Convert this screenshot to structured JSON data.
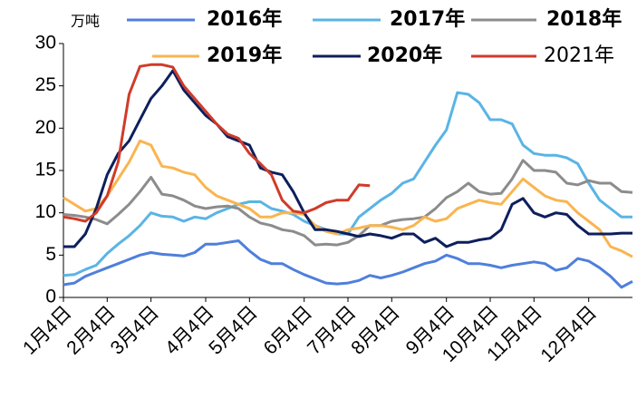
{
  "chart_data": {
    "type": "line",
    "unit": "万吨",
    "categories": [
      "1月4日",
      null,
      null,
      null,
      "2月4日",
      null,
      null,
      null,
      "3月4日",
      null,
      null,
      null,
      null,
      "4月4日",
      null,
      null,
      null,
      "5月4日",
      null,
      null,
      null,
      null,
      "6月4日",
      null,
      null,
      null,
      "7月4日",
      null,
      null,
      null,
      "8月4日",
      null,
      null,
      null,
      null,
      "9月4日",
      null,
      null,
      null,
      "10月4日",
      null,
      null,
      null,
      "11月4日",
      null,
      null,
      null,
      null,
      "12月4日",
      null,
      null,
      null,
      null
    ],
    "ylim": [
      0,
      30
    ],
    "yticks": [
      0,
      5,
      10,
      15,
      20,
      25,
      30
    ],
    "grid": false,
    "series": [
      {
        "name": "2016年",
        "color": "#4f7fdb",
        "values": [
          1.5,
          1.7,
          2.5,
          3,
          3.5,
          4,
          4.5,
          5,
          5.3,
          5.1,
          5,
          4.9,
          5.3,
          6.3,
          6.3,
          6.5,
          6.7,
          5.5,
          4.5,
          4,
          4,
          3.3,
          2.7,
          2.2,
          1.7,
          1.6,
          1.7,
          2,
          2.6,
          2.3,
          2.6,
          3,
          3.5,
          4,
          4.3,
          5,
          4.6,
          4,
          4,
          3.8,
          3.5,
          3.8,
          4,
          4.2,
          4,
          3.2,
          3.5,
          4.6,
          4.3,
          3.5,
          2.5,
          1.2,
          1.9
        ]
      },
      {
        "name": "2017年",
        "color": "#5ab4e5",
        "values": [
          2.6,
          2.7,
          3.3,
          3.8,
          5.2,
          6.3,
          7.3,
          8.5,
          10,
          9.6,
          9.5,
          9,
          9.5,
          9.3,
          10,
          10.5,
          11,
          11.3,
          11.3,
          10.5,
          10.2,
          9.8,
          9,
          8.5,
          8,
          7.5,
          7.5,
          9.5,
          10.5,
          11.5,
          12.3,
          13.5,
          14,
          16,
          18,
          19.8,
          24.2,
          24,
          23,
          21,
          21,
          20.5,
          18,
          17,
          16.8,
          16.8,
          16.5,
          15.8,
          13.5,
          11.5,
          10.5,
          9.5,
          9.5
        ]
      },
      {
        "name": "2018年",
        "color": "#8c8c8c",
        "values": [
          9.8,
          9.7,
          9.5,
          9.2,
          8.7,
          9.8,
          11,
          12.5,
          14.2,
          12.2,
          12,
          11.5,
          10.8,
          10.5,
          10.7,
          10.8,
          10.5,
          9.5,
          8.8,
          8.5,
          8,
          7.8,
          7.3,
          6.2,
          6.3,
          6.2,
          6.5,
          7.3,
          8.5,
          8.5,
          9,
          9.2,
          9.3,
          9.5,
          10.5,
          11.8,
          12.5,
          13.5,
          12.5,
          12.2,
          12.3,
          14,
          16.2,
          15,
          15,
          14.8,
          13.5,
          13.3,
          13.8,
          13.5,
          13.5,
          12.5,
          12.4
        ]
      },
      {
        "name": "2019年",
        "color": "#f9b550",
        "values": [
          11.8,
          11,
          10.2,
          10.5,
          12,
          14,
          16,
          18.5,
          18,
          15.5,
          15.3,
          14.8,
          14.5,
          13,
          12,
          11.5,
          11,
          10.5,
          9.5,
          9.5,
          10,
          10,
          9.8,
          8.5,
          7.8,
          7.5,
          8,
          8.2,
          8.5,
          8.5,
          8.3,
          8,
          8.5,
          9.5,
          9,
          9.3,
          10.5,
          11,
          11.5,
          11.2,
          11,
          12.5,
          14,
          13,
          12,
          11.5,
          11.3,
          10,
          9,
          8,
          6,
          5.5,
          4.8
        ]
      },
      {
        "name": "2020年",
        "color": "#0d1f5c",
        "values": [
          6,
          6,
          7.5,
          10.5,
          14.5,
          17,
          18.5,
          21,
          23.5,
          25,
          26.8,
          24.5,
          23,
          21.5,
          20.5,
          19,
          18.5,
          18,
          15.3,
          14.8,
          14.5,
          12.5,
          10,
          8,
          8,
          7.8,
          7.5,
          7.2,
          7.5,
          7.3,
          7,
          7.5,
          7.5,
          6.5,
          7,
          6,
          6.5,
          6.5,
          6.8,
          7,
          8,
          11,
          11.7,
          10,
          9.5,
          10,
          9.8,
          8.5,
          7.5,
          7.5,
          7.5,
          7.6,
          7.6
        ]
      },
      {
        "name": "2021年",
        "color": "#d03b2a",
        "values": [
          9.5,
          9.3,
          9,
          10,
          12,
          16,
          24,
          27.3,
          27.5,
          27.5,
          27.2,
          25,
          23.5,
          22,
          20.5,
          19.3,
          18.8,
          17,
          15.8,
          14.5,
          11.5,
          10.2,
          10,
          10.5,
          11.2,
          11.5,
          11.5,
          13.3,
          13.2,
          null,
          null,
          null,
          null,
          null,
          null,
          null,
          null,
          null,
          null,
          null,
          null,
          null,
          null,
          null,
          null,
          null,
          null,
          null,
          null,
          null,
          null,
          null,
          null
        ]
      }
    ]
  }
}
